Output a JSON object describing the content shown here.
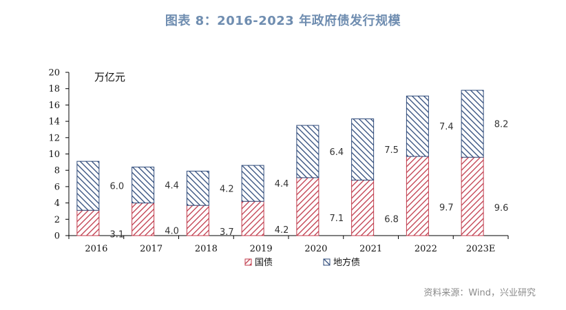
{
  "page": {
    "title": "图表 8：2016-2023 年政府债发行规模",
    "source": "资料来源：Wind，兴业研究"
  },
  "chart_data": {
    "type": "bar",
    "stacked": true,
    "categories": [
      "2016",
      "2017",
      "2018",
      "2019",
      "2020",
      "2021",
      "2022",
      "2023E"
    ],
    "series": [
      {
        "name": "国债",
        "values": [
          3.1,
          4.0,
          3.7,
          4.2,
          7.1,
          6.8,
          9.7,
          9.6
        ],
        "color": "#c0394a"
      },
      {
        "name": "地方债",
        "values": [
          6.0,
          4.4,
          4.2,
          4.4,
          6.4,
          7.5,
          7.4,
          8.2
        ],
        "color": "#2e4a7a"
      }
    ],
    "unit_label": "万亿元",
    "ylim": [
      0,
      20
    ],
    "yticks": [
      0,
      2,
      4,
      6,
      8,
      10,
      12,
      14,
      16,
      18,
      20
    ],
    "grid": false,
    "legend_position": "bottom"
  }
}
